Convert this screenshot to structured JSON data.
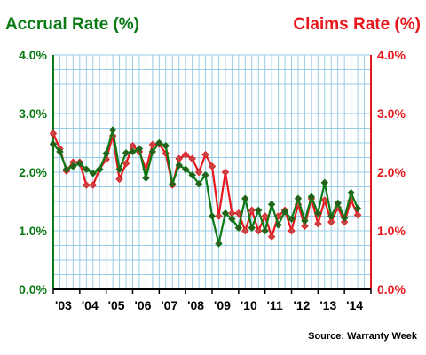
{
  "colors": {
    "accrual": "#0a7a14",
    "claims": "#e8171b",
    "grid": "#9acbe6",
    "accrual_marker": "#2d5a1f",
    "claims_marker": "#c44545"
  },
  "chart_data": {
    "type": "line",
    "title_left": "Accrual Rate (%)",
    "title_right": "Claims Rate (%)",
    "source": "Source: Warranty Week",
    "x_tick_labels": [
      "'03",
      "'04",
      "'05",
      "'06",
      "'07",
      "'08",
      "'09",
      "'10",
      "'11",
      "'12",
      "'13",
      "'14"
    ],
    "y_ticks_left": [
      "0.0%",
      "1.0%",
      "2.0%",
      "3.0%",
      "4.0%"
    ],
    "y_ticks_right": [
      "0.0%",
      "1.0%",
      "2.0%",
      "3.0%",
      "4.0%"
    ],
    "ylim": [
      0,
      4
    ],
    "x_range": [
      2003,
      2015
    ],
    "grid": true,
    "x_quarter_start": 2003.0,
    "series": [
      {
        "name": "Accrual Rate (%)",
        "axis": "left",
        "values": [
          2.48,
          2.35,
          2.05,
          2.1,
          2.15,
          2.05,
          1.98,
          2.05,
          2.32,
          2.72,
          2.05,
          2.33,
          2.35,
          2.4,
          1.9,
          2.35,
          2.5,
          2.45,
          1.8,
          2.12,
          2.05,
          1.95,
          1.8,
          1.95,
          1.25,
          0.78,
          1.3,
          1.2,
          1.05,
          1.55,
          1.05,
          1.35,
          1.0,
          1.45,
          1.1,
          1.33,
          1.2,
          1.55,
          1.17,
          1.58,
          1.3,
          1.82,
          1.25,
          1.47,
          1.22,
          1.65,
          1.38
        ]
      },
      {
        "name": "Claims Rate (%)",
        "axis": "right",
        "values": [
          2.66,
          2.4,
          2.02,
          2.17,
          2.17,
          1.78,
          1.78,
          2.05,
          2.22,
          2.62,
          1.88,
          2.15,
          2.45,
          2.35,
          2.05,
          2.47,
          2.48,
          2.32,
          1.78,
          2.23,
          2.3,
          2.23,
          2.0,
          2.3,
          2.1,
          1.25,
          2.0,
          1.3,
          1.3,
          1.0,
          1.35,
          1.0,
          1.25,
          0.9,
          1.25,
          1.35,
          1.0,
          1.45,
          1.08,
          1.55,
          1.12,
          1.52,
          1.15,
          1.4,
          1.15,
          1.52,
          1.27
        ]
      }
    ]
  }
}
